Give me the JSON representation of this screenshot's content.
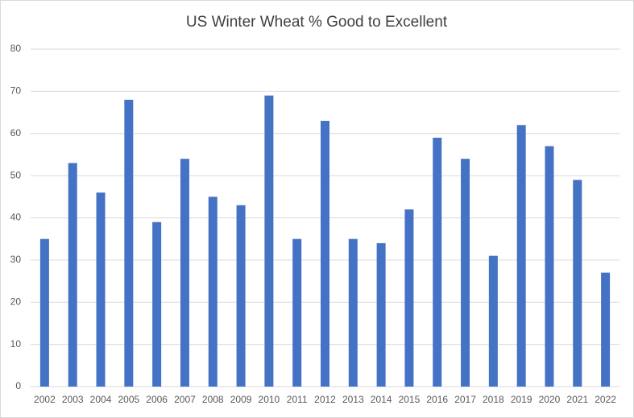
{
  "chart_data": {
    "type": "bar",
    "title": "US Winter Wheat % Good to Excellent",
    "categories": [
      "2002",
      "2003",
      "2004",
      "2005",
      "2006",
      "2007",
      "2008",
      "2009",
      "2010",
      "2011",
      "2012",
      "2013",
      "2014",
      "2015",
      "2016",
      "2017",
      "2018",
      "2019",
      "2020",
      "2021",
      "2022"
    ],
    "values": [
      35,
      53,
      46,
      68,
      39,
      54,
      45,
      43,
      69,
      35,
      63,
      35,
      34,
      42,
      59,
      54,
      31,
      62,
      57,
      49,
      27
    ],
    "color": "#4472c4",
    "ylim": [
      0,
      80
    ],
    "yticks": [
      0,
      10,
      20,
      30,
      40,
      50,
      60,
      70,
      80
    ],
    "grid": true
  }
}
